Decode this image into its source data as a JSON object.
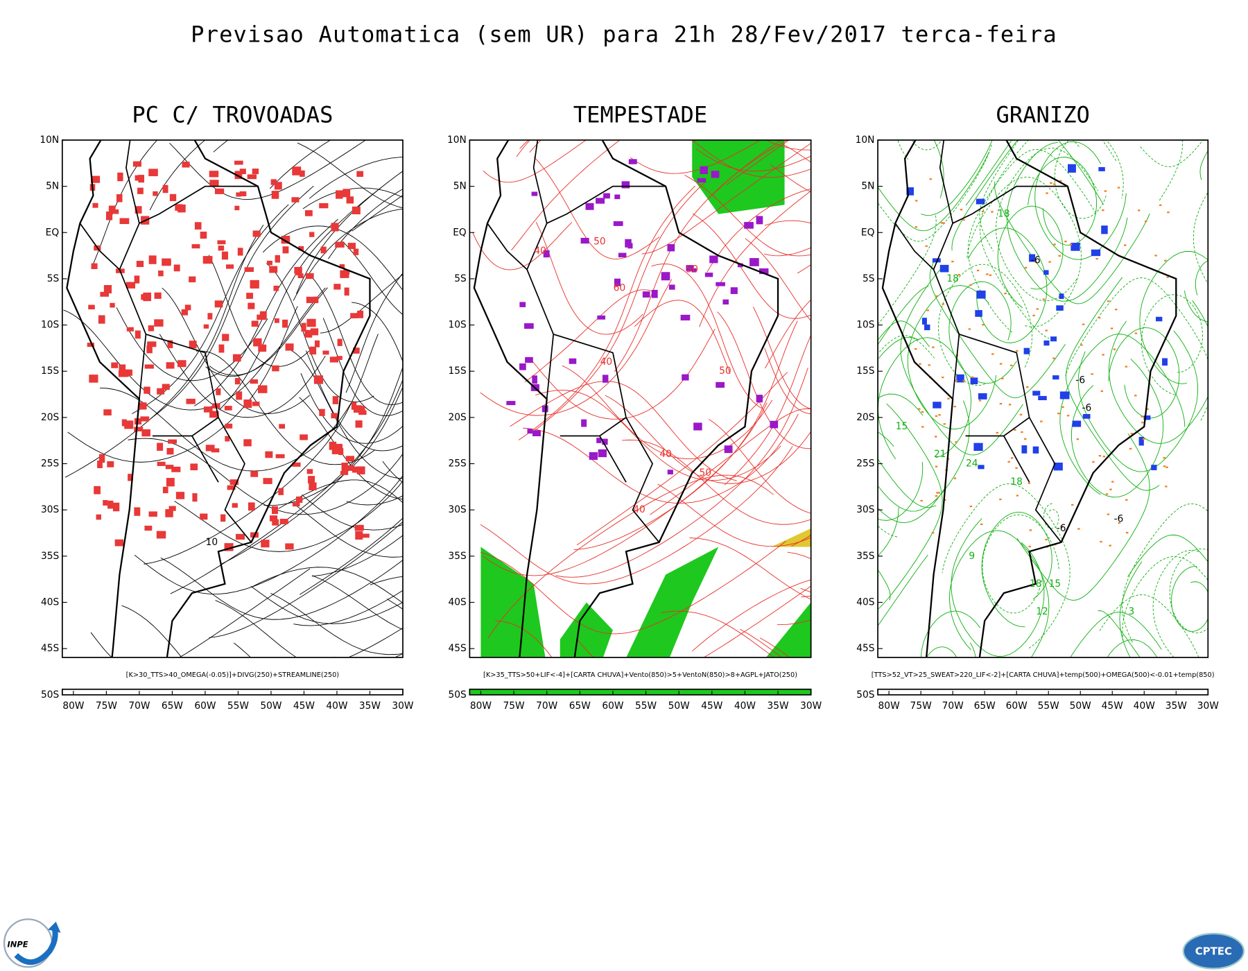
{
  "header": {
    "title": "Previsao Automatica (sem UR) para 21h 28/Fev/2017 terca-feira"
  },
  "axes": {
    "lat_labels": [
      "10N",
      "5N",
      "EQ",
      "5S",
      "10S",
      "15S",
      "20S",
      "25S",
      "30S",
      "35S",
      "40S",
      "45S",
      "50S"
    ],
    "lon_labels": [
      "80W",
      "75W",
      "70W",
      "65W",
      "60W",
      "55W",
      "50W",
      "45W",
      "40W",
      "35W",
      "30W"
    ]
  },
  "panels": [
    {
      "title": "PC C/ TROVOADAS",
      "caption": "[K>30_TTS>40_OMEGA(-0.05)]+DIVG(250)+STREAMLINE(250)",
      "contour_labels": [
        "10"
      ]
    },
    {
      "title": "TEMPESTADE",
      "caption": "[K>35_TTS>50+LIF<-4]+[CARTA CHUVA]+Vento(850)>5+VentoN(850)>8+AGPL+JATO(250)",
      "contour_labels": [
        "50",
        "40",
        "60",
        "50",
        "40",
        "50",
        "40",
        "50",
        "40"
      ]
    },
    {
      "title": "GRANIZO",
      "caption": "[TTS>52_VT>25_SWEAT>220_LIF<-2]+[CARTA CHUVA]+temp(500)+OMEGA(500)<-0.01+temp(850)",
      "contour_labels": [
        "18",
        "-6",
        "-6",
        "18",
        "-6",
        "21",
        "15",
        "18",
        "-6",
        "-6",
        "9",
        "15",
        "12",
        "3",
        "24",
        "18"
      ]
    }
  ],
  "logos": {
    "left": "INPE",
    "right": "CPTEC"
  }
}
